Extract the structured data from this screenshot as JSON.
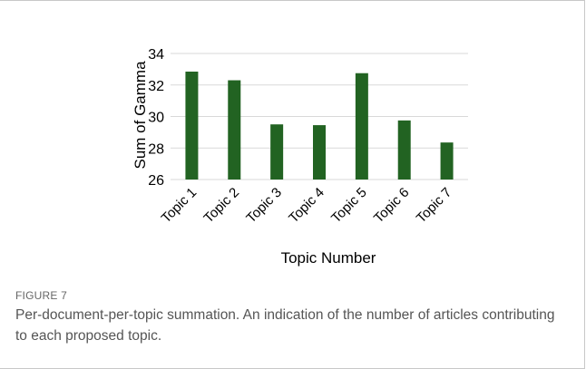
{
  "figure": {
    "label": "FIGURE 7",
    "caption": "Per-document-per-topic summation. An indication of the number of articles contributing to each proposed topic."
  },
  "colors": {
    "bar": "#226322",
    "grid": "#d9d9d9",
    "text": "#000000"
  },
  "chart_data": {
    "type": "bar",
    "categories": [
      "Topic 1",
      "Topic 2",
      "Topic 3",
      "Topic 4",
      "Topic 5",
      "Topic 6",
      "Topic 7"
    ],
    "values": [
      32.85,
      32.3,
      29.5,
      29.45,
      32.75,
      29.75,
      28.35
    ],
    "xlabel": "Topic Number",
    "ylabel": "Sum of Gamma",
    "ylim": [
      26,
      34
    ],
    "yticks": [
      26,
      28,
      30,
      32,
      34
    ],
    "grid": true,
    "legend": "none"
  }
}
